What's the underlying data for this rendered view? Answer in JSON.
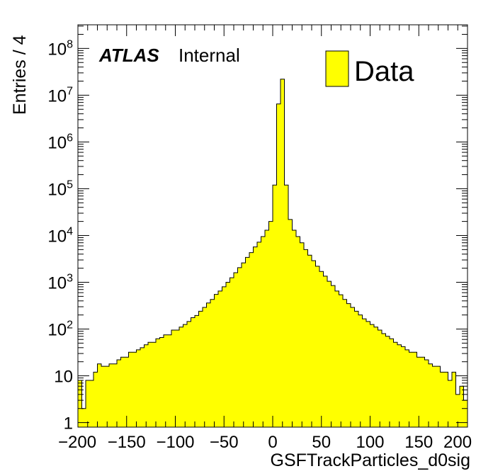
{
  "chart_data": {
    "type": "bar",
    "subtype": "histogram",
    "ylog": true,
    "xlim": [
      -200,
      200
    ],
    "ylim": [
      0.8,
      320000000
    ],
    "bin_width": 4,
    "xlabel": "GSFTrackParticles_d0sig",
    "ylabel": "Entries / 4",
    "atlas_label": "ATLAS",
    "atlas_status": "Internal",
    "legend": {
      "label": "Data",
      "placement": "top-right"
    },
    "fill_color": "#ffff00",
    "line_color": "#000000",
    "x_ticks": [
      -200,
      -150,
      -100,
      -50,
      0,
      50,
      100,
      150,
      200
    ],
    "x_tick_labels": [
      "−200",
      "−150",
      "−100",
      "−50",
      "0",
      "50",
      "100",
      "150",
      "200"
    ],
    "y_ticks": [
      1,
      10,
      100,
      1000,
      10000,
      100000,
      1000000,
      10000000,
      100000000
    ],
    "y_tick_labels": [
      {
        "base": "1",
        "exp": ""
      },
      {
        "base": "10",
        "exp": ""
      },
      {
        "base": "10",
        "exp": "2"
      },
      {
        "base": "10",
        "exp": "3"
      },
      {
        "base": "10",
        "exp": "4"
      },
      {
        "base": "10",
        "exp": "5"
      },
      {
        "base": "10",
        "exp": "6"
      },
      {
        "base": "10",
        "exp": "7"
      },
      {
        "base": "10",
        "exp": "8"
      }
    ],
    "bin_edges_start": -200,
    "values": [
      8,
      2,
      8,
      8,
      12,
      18,
      16,
      16,
      18,
      18,
      22,
      25,
      25,
      32,
      32,
      36,
      40,
      46,
      52,
      52,
      62,
      66,
      75,
      75,
      95,
      95,
      110,
      125,
      145,
      175,
      195,
      240,
      290,
      360,
      430,
      550,
      650,
      800,
      1000,
      1250,
      1600,
      2050,
      2600,
      3400,
      4300,
      5700,
      7200,
      9500,
      13000,
      20000,
      120000,
      6500000,
      22000000,
      120000,
      22000,
      13000,
      9500,
      7000,
      5000,
      3800,
      2900,
      2200,
      1700,
      1350,
      1050,
      850,
      650,
      540,
      430,
      350,
      290,
      240,
      200,
      165,
      145,
      125,
      110,
      95,
      80,
      70,
      62,
      52,
      46,
      42,
      36,
      32,
      32,
      25,
      25,
      22,
      18,
      16,
      16,
      12,
      12,
      8,
      12,
      4,
      6,
      3
    ]
  }
}
